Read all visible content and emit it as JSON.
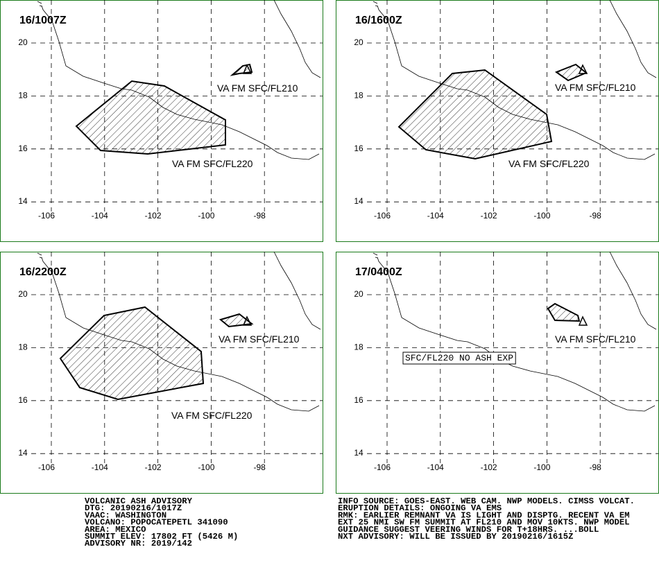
{
  "axes": {
    "lat_ticks": [
      20,
      18,
      16,
      14
    ],
    "lon_ticks": [
      -106,
      -104,
      -102,
      -100,
      -98
    ]
  },
  "panels": [
    {
      "time": "16/1007Z",
      "labels": [
        "VA FM SFC/FL210",
        "VA FM SFC/FL220"
      ]
    },
    {
      "time": "16/1600Z",
      "labels": [
        "VA FM SFC/FL210",
        "VA FM SFC/FL220"
      ]
    },
    {
      "time": "16/2200Z",
      "labels": [
        "VA FM SFC/FL210",
        "VA FM SFC/FL220"
      ]
    },
    {
      "time": "17/0400Z",
      "labels": [
        "VA FM SFC/FL210",
        "SFC/FL220 NO ASH EXP"
      ]
    }
  ],
  "advisory_left": [
    "VOLCANIC ASH ADVISORY",
    "DTG: 20190216/1017Z",
    "VAAC: WASHINGTON",
    "VOLCANO: POPOCATEPETL 341090",
    "AREA: MEXICO",
    "SUMMIT ELEV: 17802 FT (5426 M)",
    "ADVISORY NR: 2019/142"
  ],
  "advisory_right": [
    "INFO SOURCE: GOES-EAST. WEB CAM. NWP MODELS. CIMSS VOLCAT.",
    "ERUPTION DETAILS: ONGOING VA EMS",
    "RMK: EARLIER REMNANT VA IS LIGHT AND DISPTG. RECENT VA EM",
    "EXT 25 NMI SW FM SUMMIT AT FL210 AND MOV 10KTS. NWP MODEL",
    "GUIDANCE SUGGEST VEERING WINDS FOR T+18HRS. ...BOLL",
    "NXT ADVISORY: WILL BE ISSUED BY 20190216/1615Z"
  ]
}
